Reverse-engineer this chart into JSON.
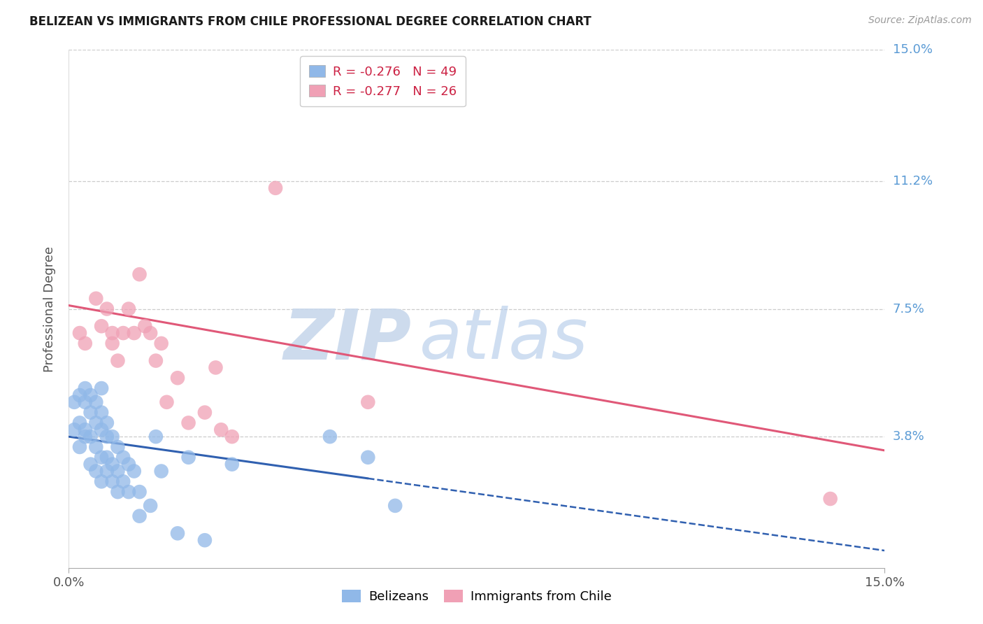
{
  "title": "BELIZEAN VS IMMIGRANTS FROM CHILE PROFESSIONAL DEGREE CORRELATION CHART",
  "source": "Source: ZipAtlas.com",
  "ylabel": "Professional Degree",
  "watermark_zip": "ZIP",
  "watermark_atlas": "atlas",
  "xlim": [
    0.0,
    0.15
  ],
  "ylim": [
    0.0,
    0.15
  ],
  "yticks": [
    0.038,
    0.075,
    0.112,
    0.15
  ],
  "ytick_labels": [
    "3.8%",
    "7.5%",
    "11.2%",
    "15.0%"
  ],
  "legend1_R": "-0.276",
  "legend1_N": "49",
  "legend2_R": "-0.277",
  "legend2_N": "26",
  "blue_color": "#A8C8F0",
  "pink_color": "#F5B8C8",
  "blue_line_color": "#3060B0",
  "pink_line_color": "#E05878",
  "blue_scatter_color": "#90B8E8",
  "pink_scatter_color": "#F0A0B5",
  "belizean_x": [
    0.001,
    0.001,
    0.002,
    0.002,
    0.002,
    0.003,
    0.003,
    0.003,
    0.003,
    0.004,
    0.004,
    0.004,
    0.004,
    0.005,
    0.005,
    0.005,
    0.005,
    0.006,
    0.006,
    0.006,
    0.006,
    0.006,
    0.007,
    0.007,
    0.007,
    0.007,
    0.008,
    0.008,
    0.008,
    0.009,
    0.009,
    0.009,
    0.01,
    0.01,
    0.011,
    0.011,
    0.012,
    0.013,
    0.013,
    0.015,
    0.016,
    0.017,
    0.02,
    0.022,
    0.025,
    0.03,
    0.048,
    0.055,
    0.06
  ],
  "belizean_y": [
    0.048,
    0.04,
    0.05,
    0.042,
    0.035,
    0.052,
    0.048,
    0.04,
    0.038,
    0.05,
    0.045,
    0.038,
    0.03,
    0.048,
    0.042,
    0.035,
    0.028,
    0.052,
    0.045,
    0.04,
    0.032,
    0.025,
    0.042,
    0.038,
    0.032,
    0.028,
    0.038,
    0.03,
    0.025,
    0.035,
    0.028,
    0.022,
    0.032,
    0.025,
    0.03,
    0.022,
    0.028,
    0.022,
    0.015,
    0.018,
    0.038,
    0.028,
    0.01,
    0.032,
    0.008,
    0.03,
    0.038,
    0.032,
    0.018
  ],
  "chile_x": [
    0.002,
    0.003,
    0.005,
    0.006,
    0.007,
    0.008,
    0.008,
    0.009,
    0.01,
    0.011,
    0.012,
    0.013,
    0.014,
    0.015,
    0.016,
    0.017,
    0.018,
    0.02,
    0.022,
    0.025,
    0.027,
    0.028,
    0.03,
    0.038,
    0.055,
    0.14
  ],
  "chile_y": [
    0.068,
    0.065,
    0.078,
    0.07,
    0.075,
    0.065,
    0.068,
    0.06,
    0.068,
    0.075,
    0.068,
    0.085,
    0.07,
    0.068,
    0.06,
    0.065,
    0.048,
    0.055,
    0.042,
    0.045,
    0.058,
    0.04,
    0.038,
    0.11,
    0.048,
    0.02
  ],
  "blue_line_x_solid_end": 0.055,
  "blue_line_intercept": 0.038,
  "blue_line_slope": -0.22,
  "pink_line_intercept": 0.076,
  "pink_line_slope": -0.28
}
